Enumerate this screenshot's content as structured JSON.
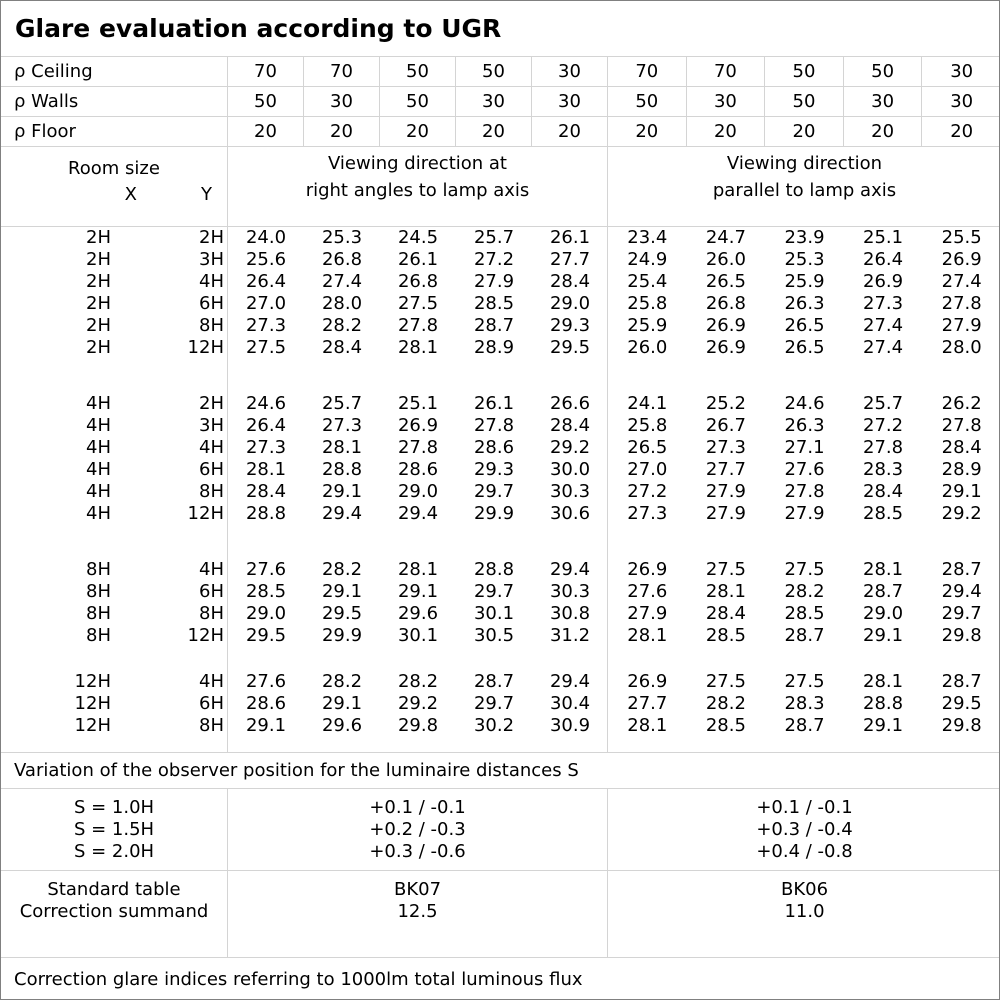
{
  "title": "Glare evaluation according to UGR",
  "reflectance_rows": [
    {
      "label": "ρ Ceiling",
      "values": [
        "70",
        "70",
        "50",
        "50",
        "30",
        "70",
        "70",
        "50",
        "50",
        "30"
      ]
    },
    {
      "label": "ρ Walls",
      "values": [
        "50",
        "30",
        "50",
        "30",
        "30",
        "50",
        "30",
        "50",
        "30",
        "30"
      ]
    },
    {
      "label": "ρ Floor",
      "values": [
        "20",
        "20",
        "20",
        "20",
        "20",
        "20",
        "20",
        "20",
        "20",
        "20"
      ]
    }
  ],
  "room_size_header": {
    "title": "Room size",
    "x_label": "X",
    "y_label": "Y"
  },
  "direction_headers": {
    "left_line1": "Viewing direction at",
    "left_line2": "right angles to lamp axis",
    "right_line1": "Viewing direction",
    "right_line2": "parallel to lamp axis"
  },
  "ugr_groups": [
    {
      "rows": [
        {
          "x": "2H",
          "y": "2H",
          "left": [
            "24.0",
            "25.3",
            "24.5",
            "25.7",
            "26.1"
          ],
          "right": [
            "23.4",
            "24.7",
            "23.9",
            "25.1",
            "25.5"
          ]
        },
        {
          "x": "2H",
          "y": "3H",
          "left": [
            "25.6",
            "26.8",
            "26.1",
            "27.2",
            "27.7"
          ],
          "right": [
            "24.9",
            "26.0",
            "25.3",
            "26.4",
            "26.9"
          ]
        },
        {
          "x": "2H",
          "y": "4H",
          "left": [
            "26.4",
            "27.4",
            "26.8",
            "27.9",
            "28.4"
          ],
          "right": [
            "25.4",
            "26.5",
            "25.9",
            "26.9",
            "27.4"
          ]
        },
        {
          "x": "2H",
          "y": "6H",
          "left": [
            "27.0",
            "28.0",
            "27.5",
            "28.5",
            "29.0"
          ],
          "right": [
            "25.8",
            "26.8",
            "26.3",
            "27.3",
            "27.8"
          ]
        },
        {
          "x": "2H",
          "y": "8H",
          "left": [
            "27.3",
            "28.2",
            "27.8",
            "28.7",
            "29.3"
          ],
          "right": [
            "25.9",
            "26.9",
            "26.5",
            "27.4",
            "27.9"
          ]
        },
        {
          "x": "2H",
          "y": "12H",
          "left": [
            "27.5",
            "28.4",
            "28.1",
            "28.9",
            "29.5"
          ],
          "right": [
            "26.0",
            "26.9",
            "26.5",
            "27.4",
            "28.0"
          ]
        }
      ]
    },
    {
      "rows": [
        {
          "x": "4H",
          "y": "2H",
          "left": [
            "24.6",
            "25.7",
            "25.1",
            "26.1",
            "26.6"
          ],
          "right": [
            "24.1",
            "25.2",
            "24.6",
            "25.7",
            "26.2"
          ]
        },
        {
          "x": "4H",
          "y": "3H",
          "left": [
            "26.4",
            "27.3",
            "26.9",
            "27.8",
            "28.4"
          ],
          "right": [
            "25.8",
            "26.7",
            "26.3",
            "27.2",
            "27.8"
          ]
        },
        {
          "x": "4H",
          "y": "4H",
          "left": [
            "27.3",
            "28.1",
            "27.8",
            "28.6",
            "29.2"
          ],
          "right": [
            "26.5",
            "27.3",
            "27.1",
            "27.8",
            "28.4"
          ]
        },
        {
          "x": "4H",
          "y": "6H",
          "left": [
            "28.1",
            "28.8",
            "28.6",
            "29.3",
            "30.0"
          ],
          "right": [
            "27.0",
            "27.7",
            "27.6",
            "28.3",
            "28.9"
          ]
        },
        {
          "x": "4H",
          "y": "8H",
          "left": [
            "28.4",
            "29.1",
            "29.0",
            "29.7",
            "30.3"
          ],
          "right": [
            "27.2",
            "27.9",
            "27.8",
            "28.4",
            "29.1"
          ]
        },
        {
          "x": "4H",
          "y": "12H",
          "left": [
            "28.8",
            "29.4",
            "29.4",
            "29.9",
            "30.6"
          ],
          "right": [
            "27.3",
            "27.9",
            "27.9",
            "28.5",
            "29.2"
          ]
        }
      ]
    },
    {
      "rows": [
        {
          "x": "8H",
          "y": "4H",
          "left": [
            "27.6",
            "28.2",
            "28.1",
            "28.8",
            "29.4"
          ],
          "right": [
            "26.9",
            "27.5",
            "27.5",
            "28.1",
            "28.7"
          ]
        },
        {
          "x": "8H",
          "y": "6H",
          "left": [
            "28.5",
            "29.1",
            "29.1",
            "29.7",
            "30.3"
          ],
          "right": [
            "27.6",
            "28.1",
            "28.2",
            "28.7",
            "29.4"
          ]
        },
        {
          "x": "8H",
          "y": "8H",
          "left": [
            "29.0",
            "29.5",
            "29.6",
            "30.1",
            "30.8"
          ],
          "right": [
            "27.9",
            "28.4",
            "28.5",
            "29.0",
            "29.7"
          ]
        },
        {
          "x": "8H",
          "y": "12H",
          "left": [
            "29.5",
            "29.9",
            "30.1",
            "30.5",
            "31.2"
          ],
          "right": [
            "28.1",
            "28.5",
            "28.7",
            "29.1",
            "29.8"
          ]
        }
      ]
    },
    {
      "rows": [
        {
          "x": "12H",
          "y": "4H",
          "left": [
            "27.6",
            "28.2",
            "28.2",
            "28.7",
            "29.4"
          ],
          "right": [
            "26.9",
            "27.5",
            "27.5",
            "28.1",
            "28.7"
          ]
        },
        {
          "x": "12H",
          "y": "6H",
          "left": [
            "28.6",
            "29.1",
            "29.2",
            "29.7",
            "30.4"
          ],
          "right": [
            "27.7",
            "28.2",
            "28.3",
            "28.8",
            "29.5"
          ]
        },
        {
          "x": "12H",
          "y": "8H",
          "left": [
            "29.1",
            "29.6",
            "29.8",
            "30.2",
            "30.9"
          ],
          "right": [
            "28.1",
            "28.5",
            "28.7",
            "29.1",
            "29.8"
          ]
        }
      ]
    }
  ],
  "variation_note": "Variation of the observer position for the luminaire distances S",
  "spacing_section": {
    "labels": [
      "S = 1.0H",
      "S = 1.5H",
      "S = 2.0H"
    ],
    "left_values": [
      "+0.1 / -0.1",
      "+0.2 / -0.3",
      "+0.3 / -0.6"
    ],
    "right_values": [
      "+0.1 / -0.1",
      "+0.3 / -0.4",
      "+0.4 / -0.8"
    ]
  },
  "standard_section": {
    "labels": [
      "Standard table",
      "Correction summand"
    ],
    "left_values": [
      "BK07",
      "12.5"
    ],
    "right_values": [
      "BK06",
      "11.0"
    ]
  },
  "footer_note": "Correction glare indices referring to 1000lm total luminous flux",
  "colors": {
    "grid_line": "#d4d4d4",
    "outer_border": "#808080",
    "text": "#000000",
    "background": "#ffffff"
  }
}
